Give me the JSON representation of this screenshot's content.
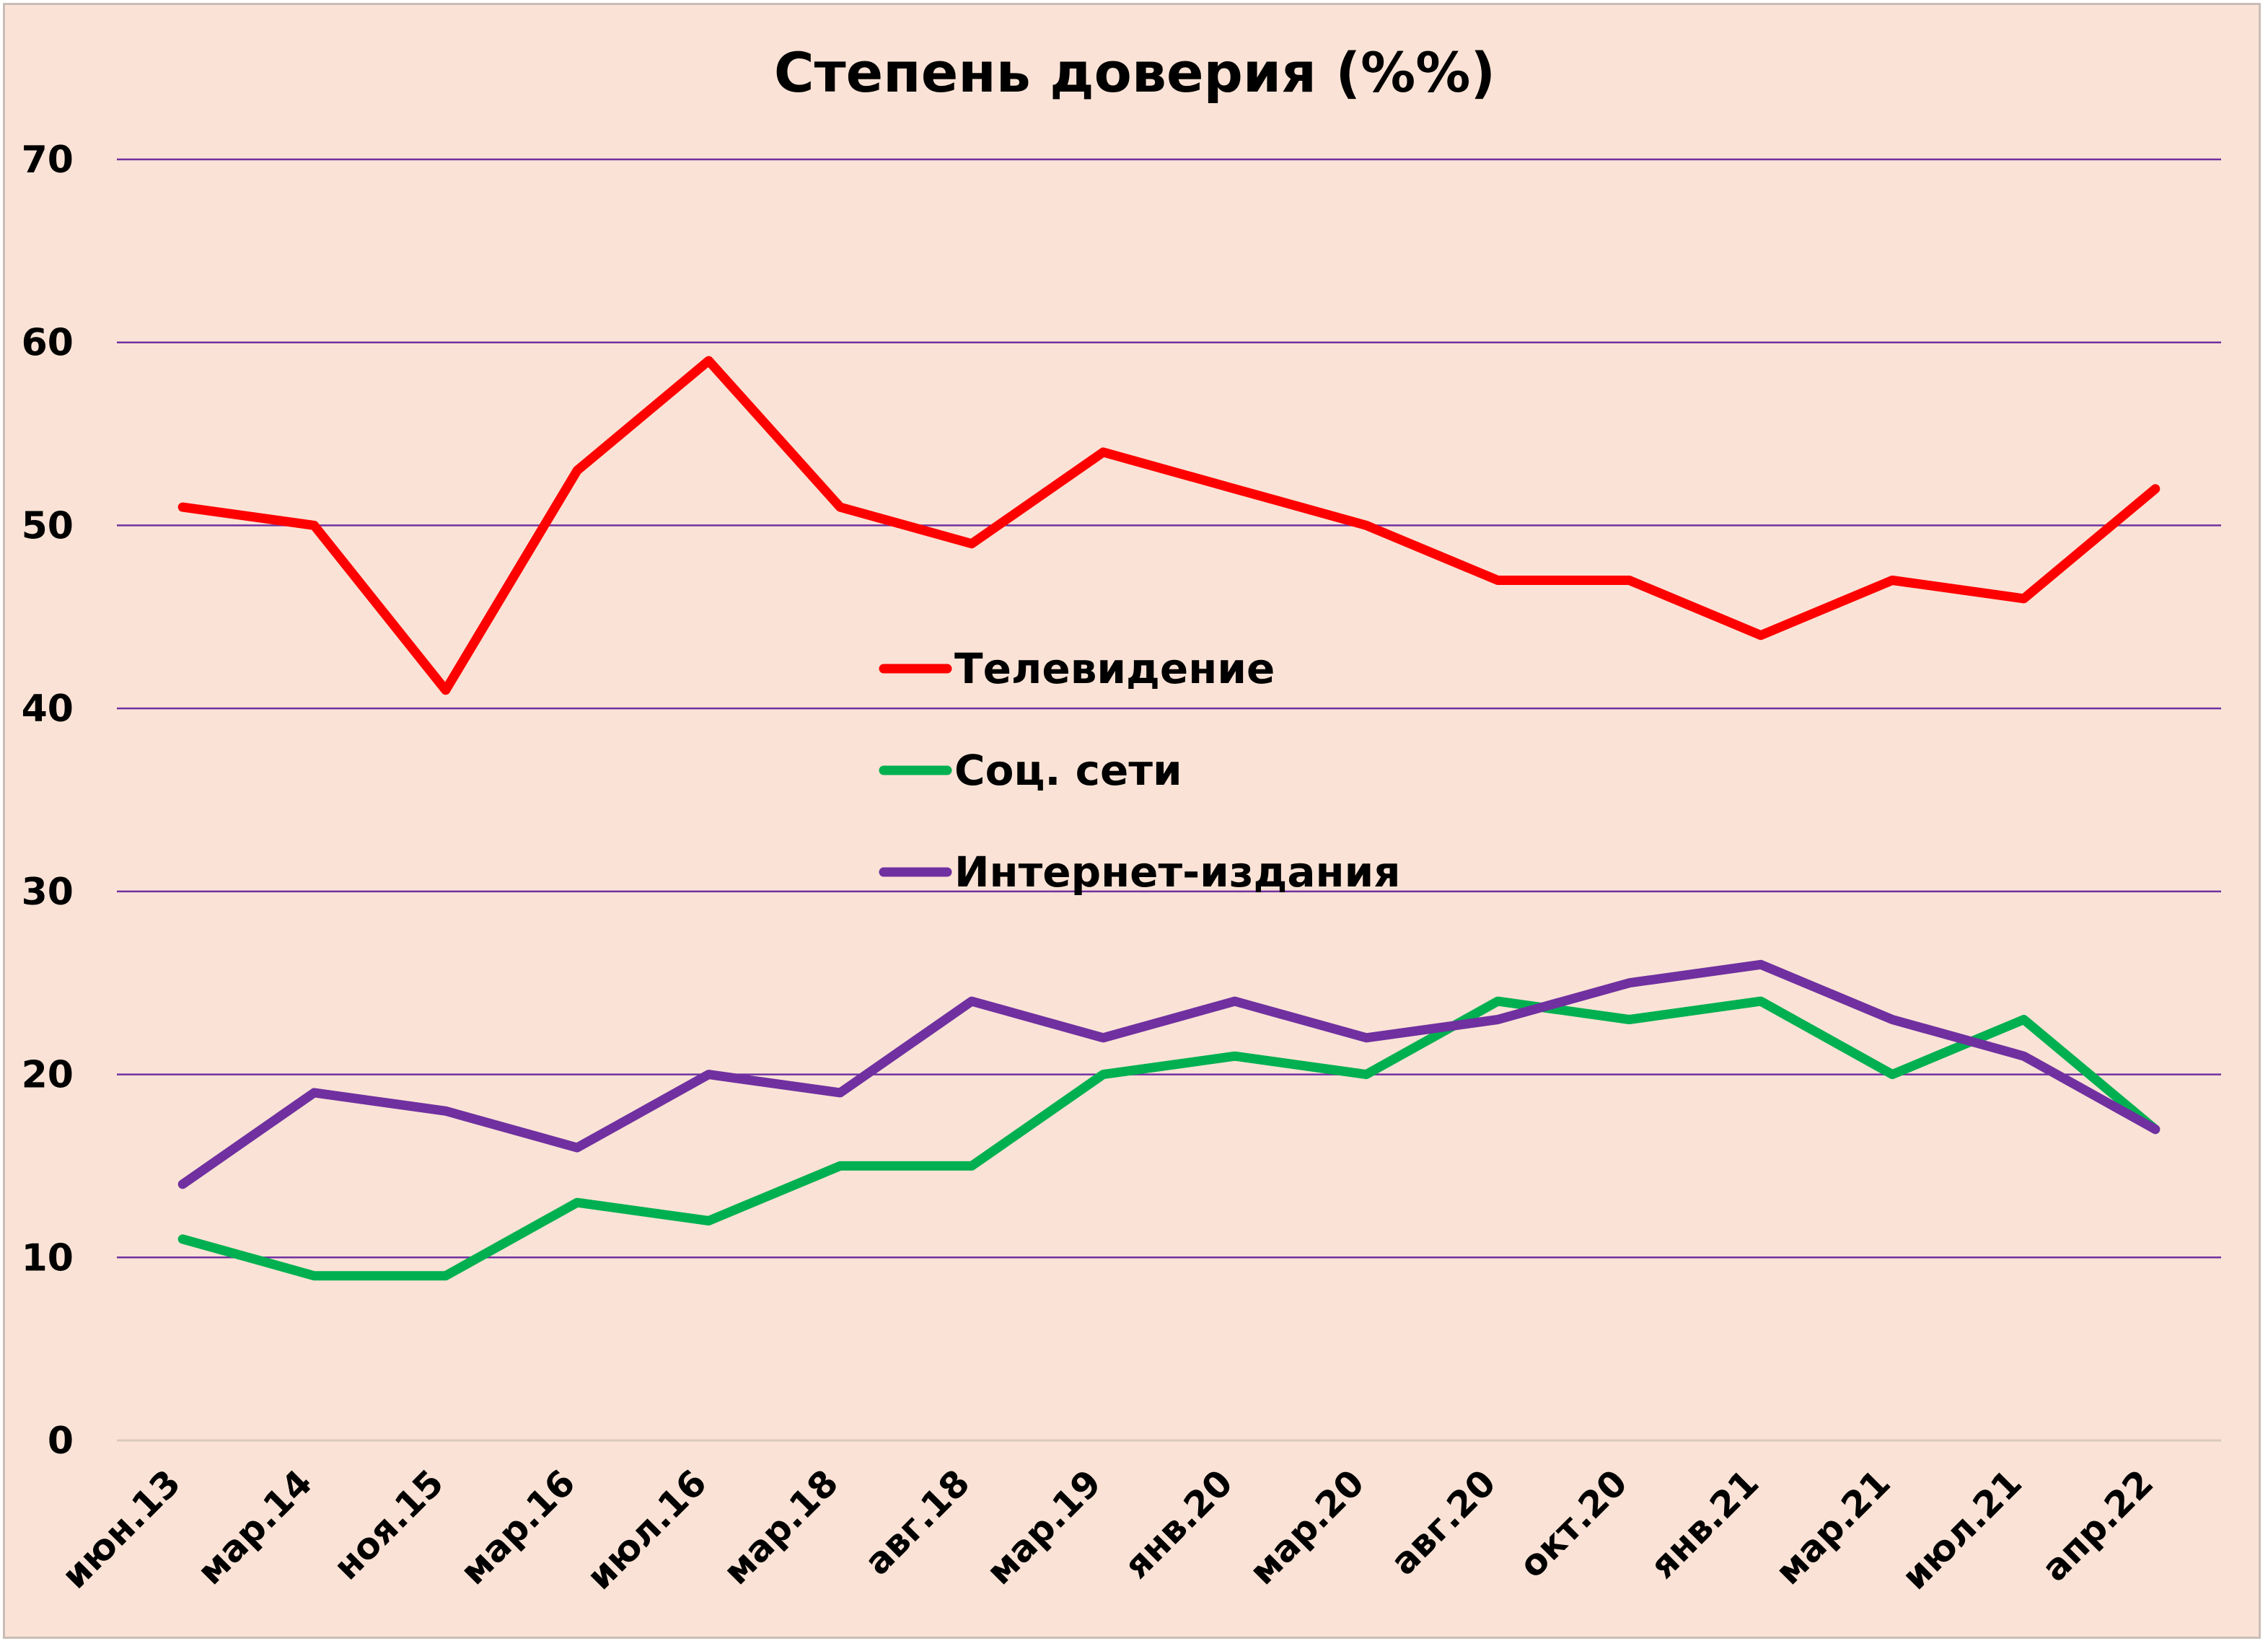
{
  "chart_data": {
    "type": "line",
    "title": "Степень доверия (%%)",
    "xlabel": "",
    "ylabel": "",
    "ylim": [
      0,
      70
    ],
    "yticks": [
      "0",
      "10",
      "20",
      "30",
      "40",
      "50",
      "60",
      "70"
    ],
    "grid": true,
    "legend_position": "center",
    "categories": [
      "июн.13",
      "мар.14",
      "ноя.15",
      "мар.16",
      "июл.16",
      "мар.18",
      "авг.18",
      "мар.19",
      "янв.20",
      "мар.20",
      "авг.20",
      "окт.20",
      "янв.21",
      "мар.21",
      "июл.21",
      "апр.22"
    ],
    "series": [
      {
        "name": "Телевидение",
        "color": "#ff0000",
        "values": [
          51,
          50,
          41,
          53,
          59,
          51,
          49,
          54,
          52,
          50,
          47,
          47,
          44,
          47,
          46,
          52
        ]
      },
      {
        "name": "Соц. сети",
        "color": "#00b050",
        "values": [
          11,
          9,
          9,
          13,
          12,
          15,
          15,
          20,
          21,
          20,
          24,
          23,
          24,
          20,
          23,
          17
        ]
      },
      {
        "name": "Интернет-издания",
        "color": "#7030a0",
        "values": [
          14,
          19,
          18,
          16,
          20,
          19,
          24,
          22,
          24,
          22,
          23,
          25,
          26,
          23,
          21,
          17
        ]
      }
    ],
    "gridline_color": "#7030a0",
    "background_color": "#fae3d6"
  }
}
